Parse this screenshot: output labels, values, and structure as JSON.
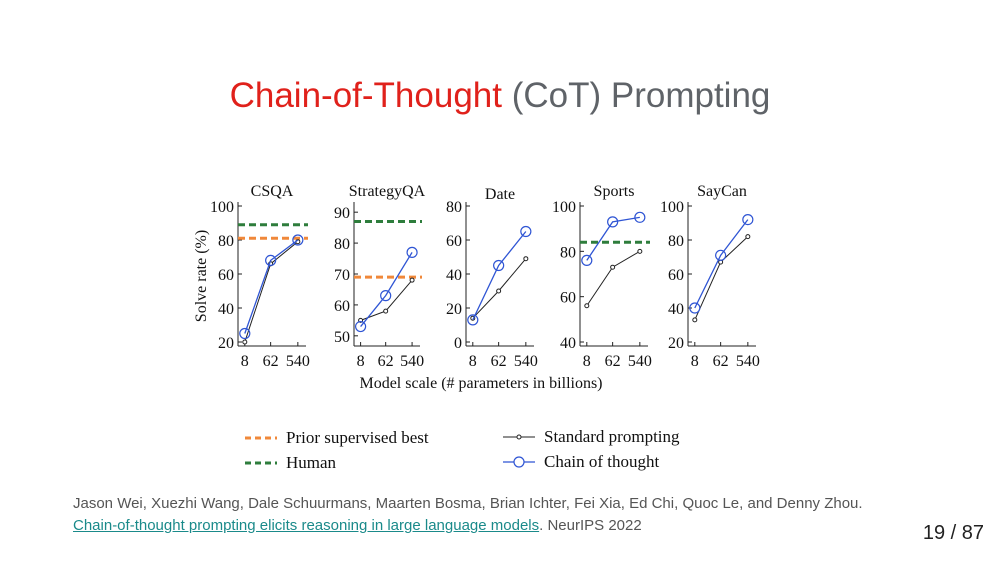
{
  "slide": {
    "title_accent": "Chain-of-Thought",
    "title_rest": " (CoT) Prompting"
  },
  "legend": {
    "prior": "Prior supervised best",
    "human": "Human",
    "standard": "Standard prompting",
    "cot": "Chain of thought"
  },
  "citation": {
    "authors": "Jason Wei, Xuezhi Wang, Dale Schuurmans, Maarten Bosma, Brian Ichter, Fei Xia, Ed Chi, Quoc Le, and Denny Zhou.",
    "paper_title": "Chain-of-thought prompting elicits reasoning in large language models",
    "venue": ". NeurIPS 2022"
  },
  "page": {
    "current": "19",
    "separator": " / ",
    "total": "87"
  },
  "colors": {
    "accent": "#e0211b",
    "prior": "#f0883a",
    "human": "#2e7d3c",
    "cot": "#2f55d4",
    "standard": "#222222"
  },
  "chart_data": {
    "shared_xlabel": "Model scale (# parameters in billions)",
    "shared_ylabel": "Solve rate (%)",
    "panels": [
      {
        "type": "line",
        "title": "CSQA",
        "x": [
          8,
          62,
          540
        ],
        "xticks": [
          "8",
          "62",
          "540"
        ],
        "ylim": [
          20,
          100
        ],
        "yticks": [
          20,
          40,
          60,
          80,
          100
        ],
        "series": [
          {
            "name": "Standard prompting",
            "values": [
              20,
              66,
              79
            ]
          },
          {
            "name": "Chain of thought",
            "values": [
              25,
              68,
              80
            ]
          }
        ],
        "prior_best": 81,
        "human": 89
      },
      {
        "type": "line",
        "title": "StrategyQA",
        "x": [
          8,
          62,
          540
        ],
        "xticks": [
          "8",
          "62",
          "540"
        ],
        "ylim": [
          48,
          92
        ],
        "yticks": [
          50,
          60,
          70,
          80,
          90
        ],
        "series": [
          {
            "name": "Standard prompting",
            "values": [
              55,
              58,
              68
            ]
          },
          {
            "name": "Chain of thought",
            "values": [
              53,
              63,
              77
            ]
          }
        ],
        "prior_best": 69,
        "human": 87
      },
      {
        "type": "line",
        "title": "Date",
        "x": [
          8,
          62,
          540
        ],
        "xticks": [
          "8",
          "62",
          "540"
        ],
        "ylim": [
          0,
          80
        ],
        "yticks": [
          0,
          20,
          40,
          60,
          80
        ],
        "series": [
          {
            "name": "Standard prompting",
            "values": [
              14,
              30,
              49
            ]
          },
          {
            "name": "Chain of thought",
            "values": [
              13,
              45,
              65
            ]
          }
        ]
      },
      {
        "type": "line",
        "title": "Sports",
        "x": [
          8,
          62,
          540
        ],
        "xticks": [
          "8",
          "62",
          "540"
        ],
        "ylim": [
          40,
          100
        ],
        "yticks": [
          40,
          60,
          80,
          100
        ],
        "series": [
          {
            "name": "Standard prompting",
            "values": [
              56,
              73,
              80
            ]
          },
          {
            "name": "Chain of thought",
            "values": [
              76,
              93,
              95
            ]
          }
        ],
        "human": 84
      },
      {
        "type": "line",
        "title": "SayCan",
        "x": [
          8,
          62,
          540
        ],
        "xticks": [
          "8",
          "62",
          "540"
        ],
        "ylim": [
          20,
          100
        ],
        "yticks": [
          20,
          40,
          60,
          80,
          100
        ],
        "series": [
          {
            "name": "Standard prompting",
            "values": [
              33,
              67,
              82
            ]
          },
          {
            "name": "Chain of thought",
            "values": [
              40,
              71,
              92
            ]
          }
        ]
      }
    ]
  }
}
